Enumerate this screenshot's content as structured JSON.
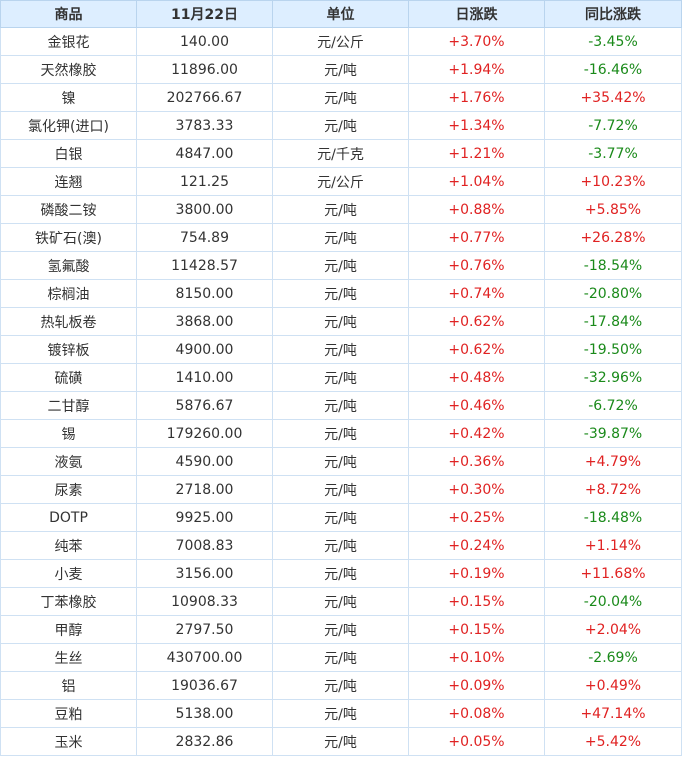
{
  "headers": [
    "商品",
    "11月22日",
    "单位",
    "日涨跌",
    "同比涨跌"
  ],
  "rows": [
    {
      "name": "金银花",
      "price": "140.00",
      "unit": "元/公斤",
      "daily": "+3.70%",
      "yoy": "-3.45%"
    },
    {
      "name": "天然橡胶",
      "price": "11896.00",
      "unit": "元/吨",
      "daily": "+1.94%",
      "yoy": "-16.46%"
    },
    {
      "name": "镍",
      "price": "202766.67",
      "unit": "元/吨",
      "daily": "+1.76%",
      "yoy": "+35.42%"
    },
    {
      "name": "氯化钾(进口)",
      "price": "3783.33",
      "unit": "元/吨",
      "daily": "+1.34%",
      "yoy": "-7.72%"
    },
    {
      "name": "白银",
      "price": "4847.00",
      "unit": "元/千克",
      "daily": "+1.21%",
      "yoy": "-3.77%"
    },
    {
      "name": "连翘",
      "price": "121.25",
      "unit": "元/公斤",
      "daily": "+1.04%",
      "yoy": "+10.23%"
    },
    {
      "name": "磷酸二铵",
      "price": "3800.00",
      "unit": "元/吨",
      "daily": "+0.88%",
      "yoy": "+5.85%"
    },
    {
      "name": "铁矿石(澳)",
      "price": "754.89",
      "unit": "元/吨",
      "daily": "+0.77%",
      "yoy": "+26.28%"
    },
    {
      "name": "氢氟酸",
      "price": "11428.57",
      "unit": "元/吨",
      "daily": "+0.76%",
      "yoy": "-18.54%"
    },
    {
      "name": "棕榈油",
      "price": "8150.00",
      "unit": "元/吨",
      "daily": "+0.74%",
      "yoy": "-20.80%"
    },
    {
      "name": "热轧板卷",
      "price": "3868.00",
      "unit": "元/吨",
      "daily": "+0.62%",
      "yoy": "-17.84%"
    },
    {
      "name": "镀锌板",
      "price": "4900.00",
      "unit": "元/吨",
      "daily": "+0.62%",
      "yoy": "-19.50%"
    },
    {
      "name": "硫磺",
      "price": "1410.00",
      "unit": "元/吨",
      "daily": "+0.48%",
      "yoy": "-32.96%"
    },
    {
      "name": "二甘醇",
      "price": "5876.67",
      "unit": "元/吨",
      "daily": "+0.46%",
      "yoy": "-6.72%"
    },
    {
      "name": "锡",
      "price": "179260.00",
      "unit": "元/吨",
      "daily": "+0.42%",
      "yoy": "-39.87%"
    },
    {
      "name": "液氨",
      "price": "4590.00",
      "unit": "元/吨",
      "daily": "+0.36%",
      "yoy": "+4.79%"
    },
    {
      "name": "尿素",
      "price": "2718.00",
      "unit": "元/吨",
      "daily": "+0.30%",
      "yoy": "+8.72%"
    },
    {
      "name": "DOTP",
      "price": "9925.00",
      "unit": "元/吨",
      "daily": "+0.25%",
      "yoy": "-18.48%"
    },
    {
      "name": "纯苯",
      "price": "7008.83",
      "unit": "元/吨",
      "daily": "+0.24%",
      "yoy": "+1.14%"
    },
    {
      "name": "小麦",
      "price": "3156.00",
      "unit": "元/吨",
      "daily": "+0.19%",
      "yoy": "+11.68%"
    },
    {
      "name": "丁苯橡胶",
      "price": "10908.33",
      "unit": "元/吨",
      "daily": "+0.15%",
      "yoy": "-20.04%"
    },
    {
      "name": "甲醇",
      "price": "2797.50",
      "unit": "元/吨",
      "daily": "+0.15%",
      "yoy": "+2.04%"
    },
    {
      "name": "生丝",
      "price": "430700.00",
      "unit": "元/吨",
      "daily": "+0.10%",
      "yoy": "-2.69%"
    },
    {
      "name": "铝",
      "price": "19036.67",
      "unit": "元/吨",
      "daily": "+0.09%",
      "yoy": "+0.49%"
    },
    {
      "name": "豆粕",
      "price": "5138.00",
      "unit": "元/吨",
      "daily": "+0.08%",
      "yoy": "+47.14%"
    },
    {
      "name": "玉米",
      "price": "2832.86",
      "unit": "元/吨",
      "daily": "+0.05%",
      "yoy": "+5.42%"
    }
  ],
  "colors": {
    "up": "#e02222",
    "down": "#1a8a1a",
    "header_bg": "#ddeeff",
    "border": "#cfe1f3",
    "text": "#333333"
  }
}
